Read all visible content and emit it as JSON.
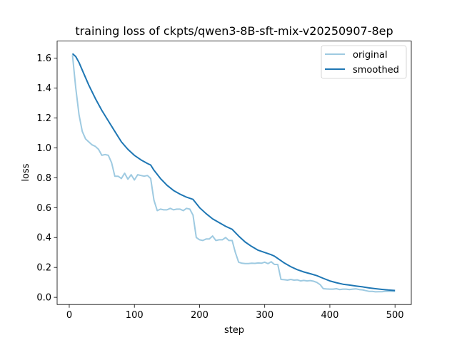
{
  "chart_data": {
    "type": "line",
    "title": "training loss of ckpts/qwen3-8B-sft-mix-v20250907-8ep",
    "xlabel": "step",
    "ylabel": "loss",
    "xlim": [
      -18.6,
      525
    ],
    "ylim": [
      -0.048,
      1.714
    ],
    "xticks": [
      0,
      100,
      200,
      300,
      400,
      500
    ],
    "yticks": [
      0.0,
      0.2,
      0.4,
      0.6,
      0.8,
      1.0,
      1.2,
      1.4,
      1.6
    ],
    "ytick_labels": [
      "0.0",
      "0.2",
      "0.4",
      "0.6",
      "0.8",
      "1.0",
      "1.2",
      "1.4",
      "1.6"
    ],
    "grid": false,
    "legend_placement": "top-right",
    "series": [
      {
        "name": "original",
        "color": "#9ecae1",
        "x": [
          5,
          10,
          15,
          20,
          25,
          30,
          35,
          40,
          45,
          50,
          55,
          60,
          65,
          70,
          75,
          80,
          85,
          90,
          95,
          100,
          105,
          110,
          115,
          120,
          125,
          130,
          135,
          140,
          145,
          150,
          155,
          160,
          165,
          170,
          175,
          180,
          185,
          190,
          195,
          200,
          205,
          210,
          215,
          220,
          225,
          230,
          235,
          240,
          245,
          250,
          255,
          260,
          265,
          270,
          275,
          280,
          285,
          290,
          295,
          300,
          305,
          310,
          315,
          320,
          325,
          330,
          335,
          340,
          345,
          350,
          355,
          360,
          365,
          370,
          375,
          380,
          385,
          390,
          395,
          400,
          405,
          410,
          415,
          420,
          425,
          430,
          435,
          440,
          445,
          450,
          455,
          460,
          465,
          470,
          475,
          480,
          485,
          490,
          495,
          500
        ],
        "y": [
          1.62,
          1.4,
          1.22,
          1.11,
          1.06,
          1.04,
          1.02,
          1.01,
          0.99,
          0.95,
          0.955,
          0.95,
          0.9,
          0.81,
          0.81,
          0.795,
          0.83,
          0.79,
          0.82,
          0.785,
          0.82,
          0.815,
          0.81,
          0.815,
          0.795,
          0.65,
          0.58,
          0.59,
          0.585,
          0.585,
          0.595,
          0.585,
          0.59,
          0.59,
          0.58,
          0.595,
          0.59,
          0.55,
          0.4,
          0.385,
          0.38,
          0.39,
          0.39,
          0.41,
          0.38,
          0.385,
          0.385,
          0.4,
          0.38,
          0.38,
          0.3,
          0.235,
          0.228,
          0.226,
          0.226,
          0.228,
          0.227,
          0.23,
          0.228,
          0.235,
          0.225,
          0.238,
          0.22,
          0.22,
          0.12,
          0.118,
          0.115,
          0.12,
          0.115,
          0.117,
          0.11,
          0.113,
          0.11,
          0.112,
          0.108,
          0.1,
          0.085,
          0.058,
          0.056,
          0.055,
          0.055,
          0.058,
          0.052,
          0.055,
          0.055,
          0.052,
          0.055,
          0.057,
          0.052,
          0.05,
          0.045,
          0.04,
          0.04,
          0.037,
          0.038,
          0.038,
          0.04,
          0.04,
          0.04,
          0.04
        ]
      },
      {
        "name": "smoothed",
        "color": "#1f77b4",
        "x": [
          5,
          10,
          15,
          20,
          30,
          40,
          50,
          60,
          70,
          80,
          90,
          100,
          110,
          120,
          125,
          130,
          140,
          150,
          160,
          170,
          180,
          190,
          200,
          210,
          220,
          230,
          240,
          250,
          260,
          270,
          280,
          290,
          300,
          310,
          315,
          320,
          330,
          340,
          350,
          360,
          370,
          380,
          390,
          400,
          410,
          420,
          430,
          440,
          450,
          460,
          470,
          480,
          490,
          500
        ],
        "y": [
          1.63,
          1.61,
          1.57,
          1.52,
          1.42,
          1.33,
          1.25,
          1.18,
          1.11,
          1.04,
          0.99,
          0.95,
          0.92,
          0.895,
          0.885,
          0.85,
          0.795,
          0.75,
          0.715,
          0.69,
          0.67,
          0.655,
          0.6,
          0.56,
          0.525,
          0.5,
          0.475,
          0.455,
          0.41,
          0.37,
          0.34,
          0.315,
          0.3,
          0.285,
          0.275,
          0.26,
          0.23,
          0.205,
          0.185,
          0.17,
          0.158,
          0.145,
          0.127,
          0.11,
          0.098,
          0.088,
          0.082,
          0.076,
          0.07,
          0.063,
          0.058,
          0.053,
          0.049,
          0.046
        ]
      }
    ]
  }
}
